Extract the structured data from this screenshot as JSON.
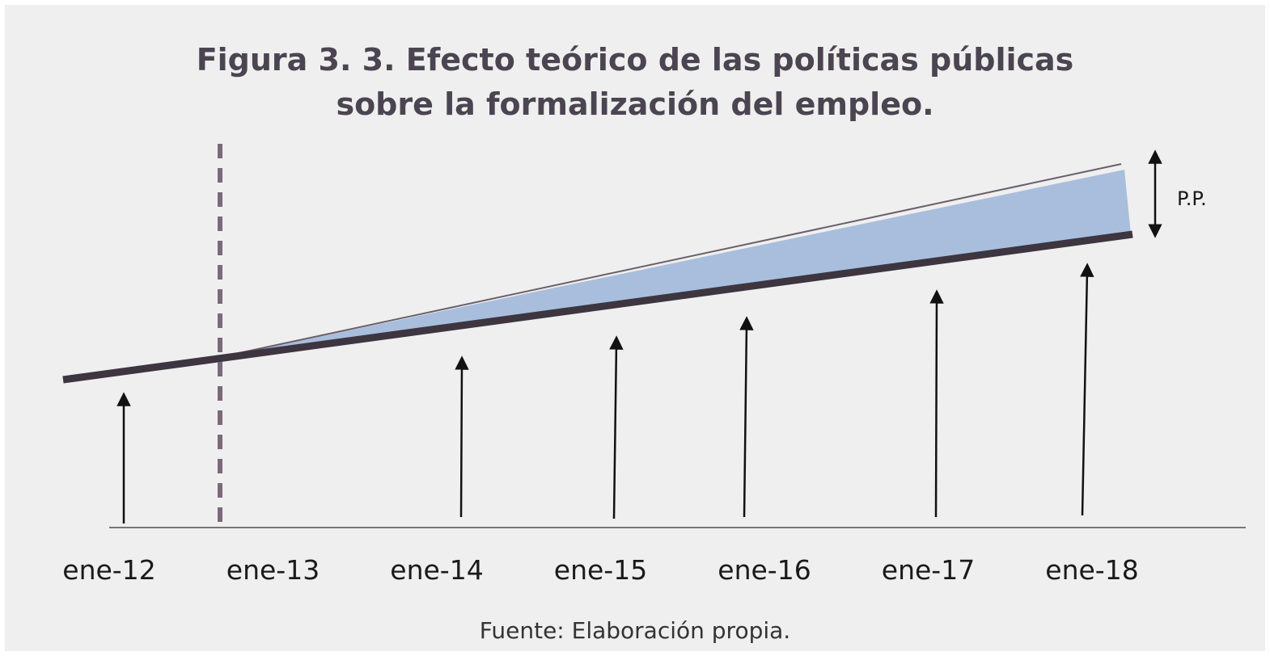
{
  "title": [
    "Figura 3. 3. Efecto teórico de las políticas públicas",
    "sobre la formalización del empleo."
  ],
  "x_labels": [
    "ene-12",
    "ene-13",
    "ene-14",
    "ene-15",
    "ene-16",
    "ene-17",
    "ene-18"
  ],
  "annotation": "P.P.",
  "source": "Fuente: Elaboración propia."
}
